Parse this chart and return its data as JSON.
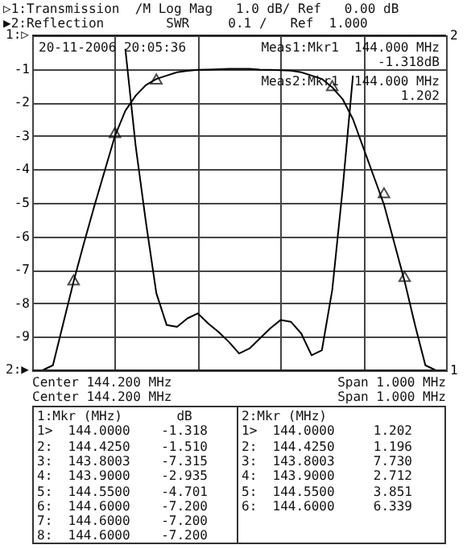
{
  "chart_data": {
    "type": "line",
    "title": "▷1:Transmission  /M Log Mag   1.0 dB/ Ref   0.00 dB",
    "subtitle": "▶2:Reflection        SWR     0.1 /   Ref  1.000",
    "categories": [
      null,
      null,
      null,
      null,
      null,
      null,
      null,
      null,
      null,
      null,
      null,
      null,
      null,
      null,
      null,
      null,
      null,
      null,
      null,
      null,
      null,
      null,
      null,
      null,
      null,
      null,
      null,
      null,
      null,
      null,
      null,
      null,
      null,
      null,
      null,
      null,
      null,
      null,
      null,
      null,
      null
    ],
    "ylim": [
      -10,
      0
    ],
    "yticks": [
      {
        "value": 0,
        "label": null
      },
      -1,
      -2,
      -3,
      -4,
      -5,
      -6,
      -7,
      -8,
      -9,
      {
        "value": -10,
        "label": null
      }
    ],
    "ref_lines": [
      {
        "axis": "y",
        "value": 0,
        "label": "1:▷"
      },
      {
        "axis": "y2",
        "value": 1,
        "label": "2:▶"
      }
    ],
    "y2lim": [
      1,
      2
    ],
    "y2ticks": [
      2,
      1
    ],
    "grid": true,
    "line_style": "solid",
    "series": [
      {
        "color": "#000000",
        "values": [
          -10,
          -10,
          -9.85,
          -8.6,
          -7.35,
          -6.2,
          -5.1,
          -4.05,
          -3.0,
          -2.25,
          -1.8,
          -1.48,
          -1.3,
          -1.2,
          -1.1,
          -1.06,
          -1.03,
          -1.02,
          -1.01,
          -1.0,
          -1.0,
          -1.0,
          -1.02,
          -1.03,
          -1.04,
          -1.05,
          -1.1,
          -1.2,
          -1.3,
          -1.55,
          -1.9,
          -2.5,
          -3.35,
          -4.2,
          -5.05,
          -6.2,
          -7.35,
          -8.65,
          -9.85,
          -10,
          -10
        ]
      },
      {
        "axis": "y2",
        "color": "#000000",
        "values": [
          null,
          null,
          null,
          null,
          null,
          null,
          null,
          null,
          null,
          1.96,
          1.67,
          1.44,
          1.23,
          1.135,
          1.13,
          1.155,
          1.17,
          1.14,
          1.115,
          1.085,
          1.05,
          1.065,
          1.095,
          1.125,
          1.15,
          1.145,
          1.11,
          1.045,
          1.06,
          1.24,
          1.54,
          1.88,
          null,
          null,
          null,
          null,
          null,
          null,
          null,
          null,
          null
        ]
      },
      {
        "type": "scatter",
        "marker": "triangle",
        "color": "#000000",
        "values": [
          null,
          null,
          null,
          null,
          -7.3,
          null,
          null,
          null,
          -2.9,
          null,
          null,
          null,
          -1.3,
          null,
          null,
          null,
          null,
          null,
          null,
          null,
          null,
          null,
          null,
          null,
          null,
          null,
          null,
          null,
          null,
          -1.5,
          null,
          null,
          null,
          null,
          -4.7,
          null,
          -7.2,
          null,
          null,
          null,
          null
        ]
      }
    ],
    "annotations": [
      "20-11-2006 20:05:36",
      "Meas1:Mkr1  144.000 MHz",
      "-1.318dB",
      "Meas2:Mkr1  144.000 MHz",
      "1.202",
      "Center 144.200 MHz",
      "Span 1.000 MHz",
      "Center 144.200 MHz",
      "Span 1.000 MHz",
      "1:Mkr (MHz)       dB",
      "2:Mkr (MHz)",
      "1>  144.0000    -1.318",
      "2:  144.4250    -1.510",
      "3:  143.8003    -7.315",
      "4:  143.9000    -2.935",
      "5:  144.5500    -4.701",
      "6:  144.6000    -7.200",
      "7:  144.6000    -7.200",
      "8:  144.6000    -7.200",
      "1>  144.0000     1.202",
      "2:  144.4250     1.196",
      "3:  143.8003     7.730",
      "4:  143.9000     2.712",
      "5:  144.5500     3.851",
      "6:  144.6000     6.339"
    ]
  }
}
